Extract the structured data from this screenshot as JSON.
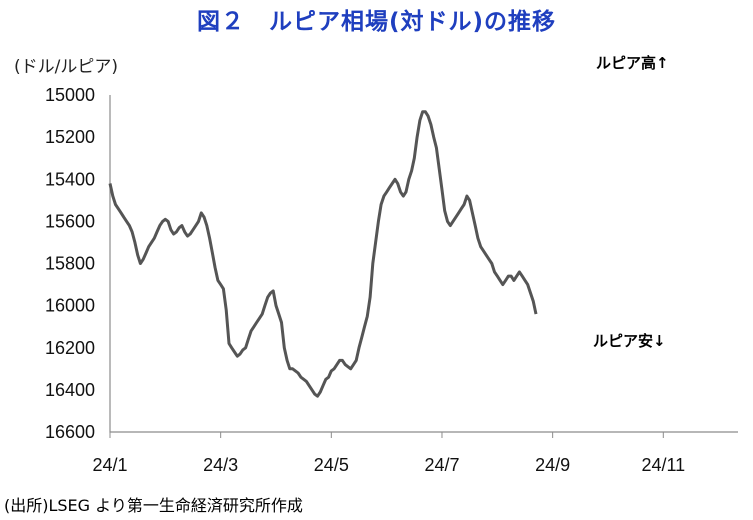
{
  "title": "図２　ルピア相場(対ドル)の推移",
  "unit_label": "(ドル/ルピア)",
  "source": "(出所)LSEG より第一生命経済研究所作成",
  "annotations": {
    "top_right": "ルピア高↑",
    "bottom_right": "ルピア安↓"
  },
  "chart_data": {
    "type": "line",
    "y_inverted": true,
    "ylim": [
      15000,
      16600
    ],
    "y_ticks": [
      15000,
      15200,
      15400,
      15600,
      15800,
      16000,
      16200,
      16400,
      16600
    ],
    "x_ticks": [
      "24/1",
      "24/3",
      "24/5",
      "24/7",
      "24/9",
      "24/11"
    ],
    "x_tick_index": [
      0,
      40,
      80,
      120,
      160,
      200
    ],
    "xlim": [
      0,
      227
    ],
    "series": [
      {
        "values": [
          15420,
          15480,
          15520,
          15540,
          15560,
          15580,
          15600,
          15620,
          15650,
          15700,
          15760,
          15800,
          15780,
          15750,
          15720,
          15700,
          15680,
          15650,
          15620,
          15600,
          15590,
          15600,
          15640,
          15660,
          15650,
          15630,
          15620,
          15650,
          15670,
          15660,
          15640,
          15620,
          15600,
          15560,
          15580,
          15620,
          15680,
          15750,
          15820,
          15880,
          15900,
          15920,
          16020,
          16180,
          16200,
          16220,
          16240,
          16230,
          16210,
          16200,
          16160,
          16120,
          16100,
          16080,
          16060,
          16040,
          16000,
          15960,
          15940,
          15930,
          16000,
          16040,
          16080,
          16200,
          16260,
          16300,
          16300,
          16310,
          16320,
          16340,
          16350,
          16360,
          16380,
          16400,
          16420,
          16430,
          16410,
          16380,
          16350,
          16340,
          16310,
          16300,
          16280,
          16260,
          16260,
          16280,
          16290,
          16300,
          16280,
          16260,
          16200,
          16150,
          16100,
          16050,
          15960,
          15800,
          15700,
          15600,
          15520,
          15480,
          15460,
          15440,
          15420,
          15400,
          15420,
          15460,
          15480,
          15460,
          15400,
          15360,
          15300,
          15200,
          15120,
          15080,
          15080,
          15100,
          15140,
          15200,
          15250,
          15350,
          15450,
          15550,
          15600,
          15620,
          15600,
          15580,
          15560,
          15540,
          15520,
          15480,
          15500,
          15560,
          15620,
          15680,
          15720,
          15740,
          15760,
          15780,
          15800,
          15840,
          15860,
          15880,
          15900,
          15880,
          15860,
          15860,
          15880,
          15860,
          15840,
          15860,
          15880,
          15900,
          15940,
          15980,
          16040
        ]
      }
    ]
  }
}
